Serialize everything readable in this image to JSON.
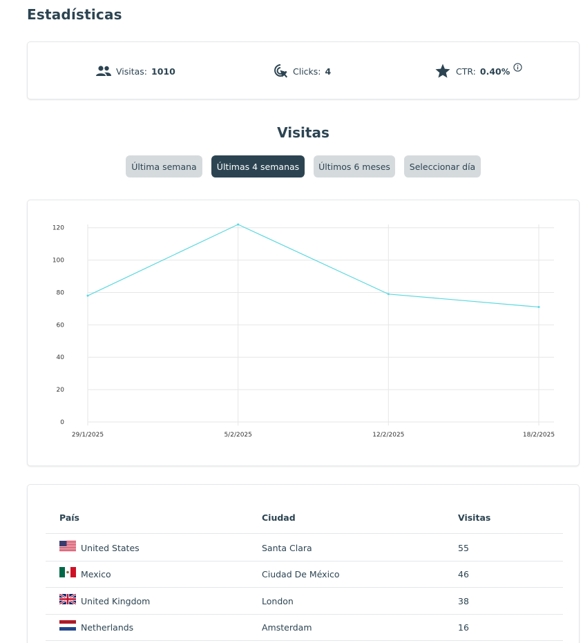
{
  "page_title": "Estadísticas",
  "stats": {
    "visits_label": "Visitas:",
    "visits_value": "1010",
    "clicks_label": "Clicks:",
    "clicks_value": "4",
    "ctr_label": "CTR:",
    "ctr_value": "0.40%"
  },
  "visits_section_title": "Visitas",
  "tabs": [
    {
      "label": "Última semana",
      "active": false
    },
    {
      "label": "Últimas 4 semanas",
      "active": true
    },
    {
      "label": "Últimos 6 meses",
      "active": false
    },
    {
      "label": "Seleccionar día",
      "active": false
    }
  ],
  "colors": {
    "primary": "#2c4452",
    "line": "#5ad8e0",
    "tab_inactive": "#d5dadd",
    "grid": "#e6e6e6"
  },
  "chart_data": {
    "type": "line",
    "categories": [
      "29/1/2025",
      "5/2/2025",
      "12/2/2025",
      "18/2/2025"
    ],
    "values": [
      78,
      122,
      79,
      71
    ],
    "yticks": [
      0,
      20,
      40,
      60,
      80,
      100,
      120
    ],
    "ylim": [
      0,
      122
    ],
    "grid": true,
    "title": "",
    "xlabel": "",
    "ylabel": ""
  },
  "table": {
    "headers": {
      "country": "País",
      "city": "Ciudad",
      "visits": "Visitas"
    },
    "rows": [
      {
        "flag": "us-flag",
        "country": "United States",
        "city": "Santa Clara",
        "visits": "55"
      },
      {
        "flag": "mx-flag",
        "country": "Mexico",
        "city": "Ciudad De México",
        "visits": "46"
      },
      {
        "flag": "gb-flag",
        "country": "United Kingdom",
        "city": "London",
        "visits": "38"
      },
      {
        "flag": "nl-flag",
        "country": "Netherlands",
        "city": "Amsterdam",
        "visits": "16"
      }
    ]
  }
}
